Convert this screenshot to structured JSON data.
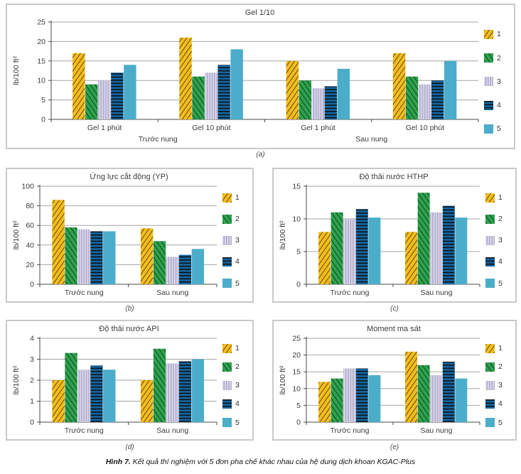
{
  "figure": {
    "caption_label": "Hình 7.",
    "caption_text": " Kết quả thí nghiệm với 5 đơn pha chế khác nhau của hệ dung dịch khoan KGAC-Plus"
  },
  "legend": {
    "labels": [
      "1",
      "2",
      "3",
      "4",
      "5"
    ]
  },
  "series_styles": [
    {
      "name": "1",
      "color": "#F5BD1F",
      "pattern": "diag-up",
      "hatch_color": "#6b5406"
    },
    {
      "name": "2",
      "color": "#2FA24D",
      "pattern": "diag-down",
      "hatch_color": "#0c4d22"
    },
    {
      "name": "3",
      "color": "#B5AFD0",
      "pattern": "vertical",
      "hatch_color": "#EFEDF7"
    },
    {
      "name": "4",
      "color": "#1566A0",
      "pattern": "horizontal",
      "hatch_color": "#0d0d0d"
    },
    {
      "name": "5",
      "color": "#4BADC9",
      "pattern": "solid",
      "hatch_color": null
    }
  ],
  "chart_data": [
    {
      "id": "a",
      "type": "bar",
      "panel_label": "(a)",
      "title": "Gel 1/10",
      "ylabel": "lb/100 ft²",
      "ylim": [
        0,
        25
      ],
      "ytick_step": 5,
      "grid": true,
      "legend_position": "right",
      "categories": [
        "Gel 1 phút",
        "Gel 10 phút",
        "Gel 1 phút",
        "Gel 10 phút"
      ],
      "supergroups": [
        {
          "label": "Trước nung",
          "span": [
            0,
            1
          ]
        },
        {
          "label": "Sau nung",
          "span": [
            2,
            3
          ]
        }
      ],
      "series": [
        {
          "name": "1",
          "values": [
            17,
            21,
            15,
            17
          ]
        },
        {
          "name": "2",
          "values": [
            9,
            11,
            10,
            11
          ]
        },
        {
          "name": "3",
          "values": [
            10,
            12,
            8,
            9
          ]
        },
        {
          "name": "4",
          "values": [
            12,
            14,
            8.5,
            10
          ]
        },
        {
          "name": "5",
          "values": [
            14,
            18,
            13,
            15
          ]
        }
      ]
    },
    {
      "id": "b",
      "type": "bar",
      "panel_label": "(b)",
      "title": "Ứng lực cắt động (YP)",
      "ylabel": "lb/100 ft²",
      "ylim": [
        0,
        100
      ],
      "ytick_step": 20,
      "grid": true,
      "legend_position": "right",
      "categories": [
        "Trước nung",
        "Sau nung"
      ],
      "series": [
        {
          "name": "1",
          "values": [
            86,
            57
          ]
        },
        {
          "name": "2",
          "values": [
            58,
            44
          ]
        },
        {
          "name": "3",
          "values": [
            56,
            28
          ]
        },
        {
          "name": "4",
          "values": [
            54,
            30
          ]
        },
        {
          "name": "5",
          "values": [
            54,
            36
          ]
        }
      ]
    },
    {
      "id": "c",
      "type": "bar",
      "panel_label": "(c)",
      "title": "Độ thải nước HTHP",
      "ylabel": "lb/100 ft²",
      "ylim": [
        0,
        15
      ],
      "ytick_step": 5,
      "grid": true,
      "legend_position": "right",
      "categories": [
        "Trước nung",
        "Sau nung"
      ],
      "series": [
        {
          "name": "1",
          "values": [
            8,
            8
          ]
        },
        {
          "name": "2",
          "values": [
            11,
            14
          ]
        },
        {
          "name": "3",
          "values": [
            10,
            11
          ]
        },
        {
          "name": "4",
          "values": [
            11.5,
            12
          ]
        },
        {
          "name": "5",
          "values": [
            10.2,
            10.2
          ]
        }
      ]
    },
    {
      "id": "d",
      "type": "bar",
      "panel_label": "(d)",
      "title": "Độ thải nước API",
      "ylabel": "lb/100 ft²",
      "ylim": [
        0,
        4
      ],
      "ytick_step": 1,
      "grid": true,
      "legend_position": "right",
      "categories": [
        "Trước nung",
        "Sau nung"
      ],
      "series": [
        {
          "name": "1",
          "values": [
            2,
            2
          ]
        },
        {
          "name": "2",
          "values": [
            3.3,
            3.5
          ]
        },
        {
          "name": "3",
          "values": [
            2.5,
            2.8
          ]
        },
        {
          "name": "4",
          "values": [
            2.7,
            2.9
          ]
        },
        {
          "name": "5",
          "values": [
            2.5,
            3
          ]
        }
      ]
    },
    {
      "id": "e",
      "type": "bar",
      "panel_label": "(e)",
      "title": "Moment ma sát",
      "ylabel": "lb/100 ft²",
      "ylim": [
        0,
        25
      ],
      "ytick_step": 5,
      "grid": true,
      "legend_position": "right",
      "categories": [
        "Trước nung",
        "Sau nung"
      ],
      "series": [
        {
          "name": "1",
          "values": [
            12,
            21
          ]
        },
        {
          "name": "2",
          "values": [
            13,
            17
          ]
        },
        {
          "name": "3",
          "values": [
            16,
            14
          ]
        },
        {
          "name": "4",
          "values": [
            16,
            18
          ]
        },
        {
          "name": "5",
          "values": [
            14,
            13
          ]
        }
      ]
    }
  ]
}
